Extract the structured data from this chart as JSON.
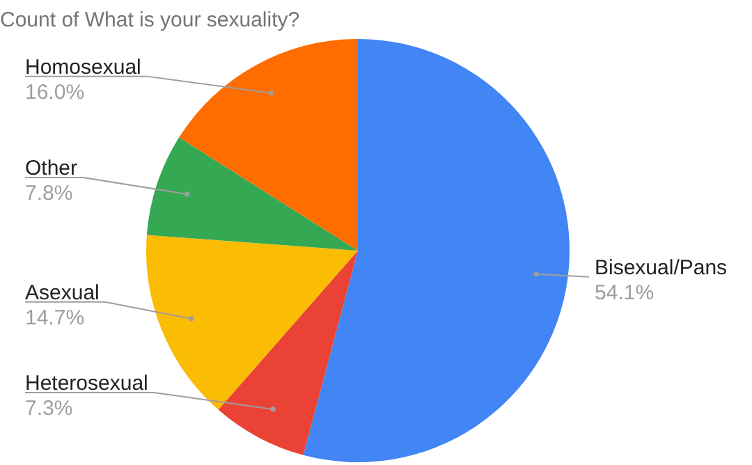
{
  "chart_data": {
    "type": "pie",
    "title": "Count of What is your sexuality?",
    "categories": [
      "Bisexual/Pans",
      "Heterosexual",
      "Asexual",
      "Other",
      "Homosexual"
    ],
    "values": [
      54.1,
      7.3,
      14.7,
      7.8,
      16.0
    ],
    "value_labels": [
      "54.1%",
      "7.3%",
      "14.7%",
      "7.8%",
      "16.0%"
    ],
    "colors": [
      "#4285f4",
      "#ea4335",
      "#fbbc04",
      "#34a853",
      "#ff6d01"
    ],
    "legend": false
  }
}
